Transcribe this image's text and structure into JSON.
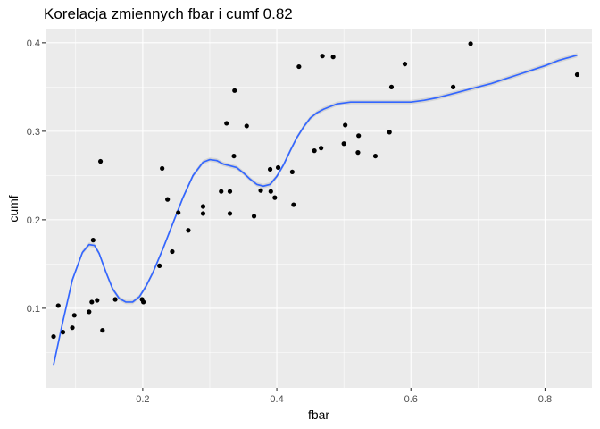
{
  "chart_data": {
    "type": "scatter",
    "title": "Korelacja zmiennych fbar i cumf 0.82",
    "xlabel": "fbar",
    "ylabel": "cumf",
    "xlim": [
      0.055,
      0.87
    ],
    "ylim": [
      0.01,
      0.415
    ],
    "x_ticks": [
      {
        "value": 0.2,
        "label": "0.2"
      },
      {
        "value": 0.4,
        "label": "0.4"
      },
      {
        "value": 0.6,
        "label": "0.6"
      },
      {
        "value": 0.8,
        "label": "0.8"
      }
    ],
    "y_ticks": [
      {
        "value": 0.1,
        "label": "0.1"
      },
      {
        "value": 0.2,
        "label": "0.2"
      },
      {
        "value": 0.3,
        "label": "0.3"
      },
      {
        "value": 0.4,
        "label": "0.4"
      }
    ],
    "grid": true,
    "colors": {
      "panel": "#ebebeb",
      "grid_major": "#ffffff",
      "point": "#000000",
      "smooth_line": "#3366ff",
      "ribbon": "#b3b3b3"
    },
    "points": [
      {
        "x": 0.067,
        "y": 0.068
      },
      {
        "x": 0.074,
        "y": 0.103
      },
      {
        "x": 0.081,
        "y": 0.073
      },
      {
        "x": 0.095,
        "y": 0.078
      },
      {
        "x": 0.098,
        "y": 0.092
      },
      {
        "x": 0.12,
        "y": 0.096
      },
      {
        "x": 0.124,
        "y": 0.107
      },
      {
        "x": 0.126,
        "y": 0.177
      },
      {
        "x": 0.132,
        "y": 0.109
      },
      {
        "x": 0.137,
        "y": 0.266
      },
      {
        "x": 0.14,
        "y": 0.075
      },
      {
        "x": 0.159,
        "y": 0.11
      },
      {
        "x": 0.199,
        "y": 0.11
      },
      {
        "x": 0.201,
        "y": 0.107
      },
      {
        "x": 0.225,
        "y": 0.148
      },
      {
        "x": 0.229,
        "y": 0.258
      },
      {
        "x": 0.237,
        "y": 0.223
      },
      {
        "x": 0.244,
        "y": 0.164
      },
      {
        "x": 0.253,
        "y": 0.208
      },
      {
        "x": 0.268,
        "y": 0.188
      },
      {
        "x": 0.29,
        "y": 0.215
      },
      {
        "x": 0.29,
        "y": 0.207
      },
      {
        "x": 0.317,
        "y": 0.232
      },
      {
        "x": 0.325,
        "y": 0.309
      },
      {
        "x": 0.33,
        "y": 0.232
      },
      {
        "x": 0.33,
        "y": 0.207
      },
      {
        "x": 0.336,
        "y": 0.272
      },
      {
        "x": 0.337,
        "y": 0.346
      },
      {
        "x": 0.355,
        "y": 0.306
      },
      {
        "x": 0.366,
        "y": 0.204
      },
      {
        "x": 0.376,
        "y": 0.233
      },
      {
        "x": 0.39,
        "y": 0.257
      },
      {
        "x": 0.391,
        "y": 0.232
      },
      {
        "x": 0.397,
        "y": 0.225
      },
      {
        "x": 0.402,
        "y": 0.259
      },
      {
        "x": 0.423,
        "y": 0.254
      },
      {
        "x": 0.425,
        "y": 0.217
      },
      {
        "x": 0.433,
        "y": 0.373
      },
      {
        "x": 0.456,
        "y": 0.278
      },
      {
        "x": 0.466,
        "y": 0.281
      },
      {
        "x": 0.468,
        "y": 0.385
      },
      {
        "x": 0.484,
        "y": 0.384
      },
      {
        "x": 0.5,
        "y": 0.286
      },
      {
        "x": 0.502,
        "y": 0.307
      },
      {
        "x": 0.521,
        "y": 0.276
      },
      {
        "x": 0.522,
        "y": 0.295
      },
      {
        "x": 0.547,
        "y": 0.272
      },
      {
        "x": 0.568,
        "y": 0.299
      },
      {
        "x": 0.571,
        "y": 0.35
      },
      {
        "x": 0.591,
        "y": 0.376
      },
      {
        "x": 0.663,
        "y": 0.35
      },
      {
        "x": 0.689,
        "y": 0.399
      },
      {
        "x": 0.848,
        "y": 0.364
      }
    ],
    "smooth": {
      "x": [
        0.067,
        0.08,
        0.095,
        0.11,
        0.12,
        0.128,
        0.135,
        0.145,
        0.155,
        0.165,
        0.175,
        0.185,
        0.195,
        0.205,
        0.215,
        0.23,
        0.245,
        0.26,
        0.275,
        0.29,
        0.3,
        0.31,
        0.32,
        0.33,
        0.34,
        0.35,
        0.36,
        0.37,
        0.38,
        0.39,
        0.4,
        0.41,
        0.42,
        0.43,
        0.44,
        0.45,
        0.46,
        0.47,
        0.48,
        0.49,
        0.5,
        0.51,
        0.52,
        0.54,
        0.56,
        0.58,
        0.6,
        0.62,
        0.64,
        0.66,
        0.68,
        0.7,
        0.72,
        0.74,
        0.76,
        0.78,
        0.8,
        0.82,
        0.848
      ],
      "y": [
        0.036,
        0.082,
        0.132,
        0.163,
        0.172,
        0.171,
        0.162,
        0.141,
        0.122,
        0.111,
        0.107,
        0.107,
        0.113,
        0.125,
        0.14,
        0.167,
        0.196,
        0.225,
        0.25,
        0.265,
        0.268,
        0.267,
        0.263,
        0.261,
        0.259,
        0.253,
        0.246,
        0.24,
        0.238,
        0.24,
        0.249,
        0.262,
        0.278,
        0.293,
        0.305,
        0.315,
        0.321,
        0.325,
        0.328,
        0.331,
        0.332,
        0.333,
        0.333,
        0.333,
        0.333,
        0.333,
        0.333,
        0.335,
        0.338,
        0.342,
        0.346,
        0.35,
        0.354,
        0.359,
        0.364,
        0.369,
        0.374,
        0.38,
        0.386
      ]
    }
  }
}
